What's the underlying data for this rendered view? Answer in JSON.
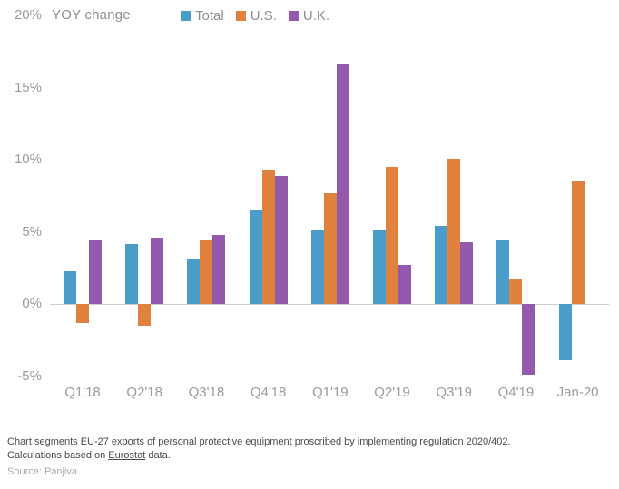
{
  "chart_data": {
    "type": "bar",
    "title": "YOY change",
    "categories": [
      "Q1'18",
      "Q2'18",
      "Q3'18",
      "Q4'18",
      "Q1'19",
      "Q2'19",
      "Q3'19",
      "Q4'19",
      "Jan-20"
    ],
    "series": [
      {
        "name": "Total",
        "color": "#4A9DC8",
        "values": [
          2.3,
          4.2,
          3.1,
          6.5,
          5.2,
          5.1,
          5.4,
          4.5,
          -3.9
        ]
      },
      {
        "name": "U.S.",
        "color": "#E0813D",
        "values": [
          -1.3,
          -1.5,
          4.4,
          9.3,
          7.7,
          9.5,
          10.1,
          1.8,
          8.5
        ]
      },
      {
        "name": "U.K.",
        "color": "#9259AD",
        "values": [
          4.5,
          4.6,
          4.8,
          8.9,
          16.7,
          2.7,
          4.3,
          -4.9,
          null
        ]
      }
    ],
    "unit": "%",
    "ylim": [
      -5,
      20
    ],
    "yticks": [
      {
        "label": "20%",
        "value": 20
      },
      {
        "label": "15%",
        "value": 15
      },
      {
        "label": "10%",
        "value": 10
      },
      {
        "label": "5%",
        "value": 5
      },
      {
        "label": "0%",
        "value": 0
      },
      {
        "label": "-5%",
        "value": -5
      }
    ],
    "grid": false,
    "legend_position": "top"
  },
  "footer": {
    "note_line1": "Chart segments EU-27 exports of personal protective equipment proscribed by implementing regulation 2020/402.",
    "note_line2_before": "Calculations based on ",
    "note_link": "Eurostat",
    "note_line2_after": " data.",
    "source": "Source: Panjiva"
  },
  "colors": {
    "total": "#4A9DC8",
    "us": "#E0813D",
    "uk": "#9259AD",
    "axis_text": "#9b9b9b",
    "zero_line": "#cfcfcf",
    "note_text": "#4a4a4a",
    "source_text": "#a9a9a9"
  }
}
